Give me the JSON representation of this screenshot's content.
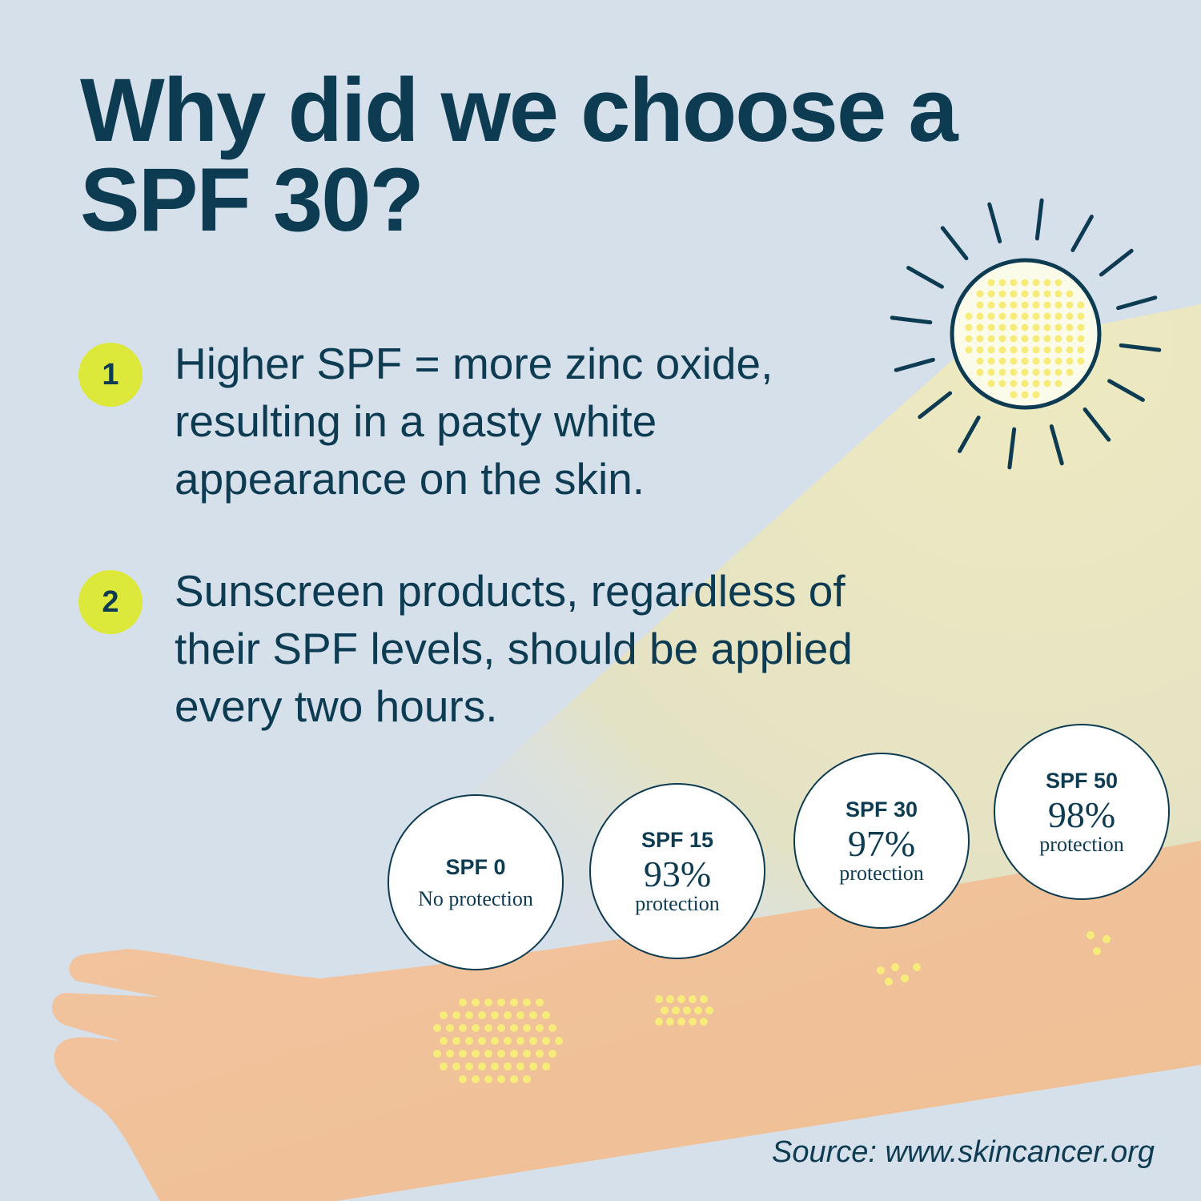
{
  "title": "Why did we choose a SPF 30?",
  "points": [
    {
      "number": "1",
      "text": "Higher SPF = more zinc oxide, resulting in a pasty white appearance on the skin."
    },
    {
      "number": "2",
      "text": "Sunscreen products, regardless of their SPF levels, should be applied every two hours."
    }
  ],
  "spf_levels": [
    {
      "label": "SPF 0",
      "value": "",
      "sub": "No protection"
    },
    {
      "label": "SPF 15",
      "value": "93%",
      "sub": "protection"
    },
    {
      "label": "SPF 30",
      "value": "97%",
      "sub": "protection"
    },
    {
      "label": "SPF 50",
      "value": "98%",
      "sub": "protection"
    }
  ],
  "source": "Source: www.skincancer.org",
  "colors": {
    "text": "#0d3b52",
    "badge": "#dde93a",
    "background": "#d6e0ea",
    "skin": "#f1c39a",
    "dots": "#f7ec7a"
  },
  "icons": [
    "sun-icon"
  ]
}
